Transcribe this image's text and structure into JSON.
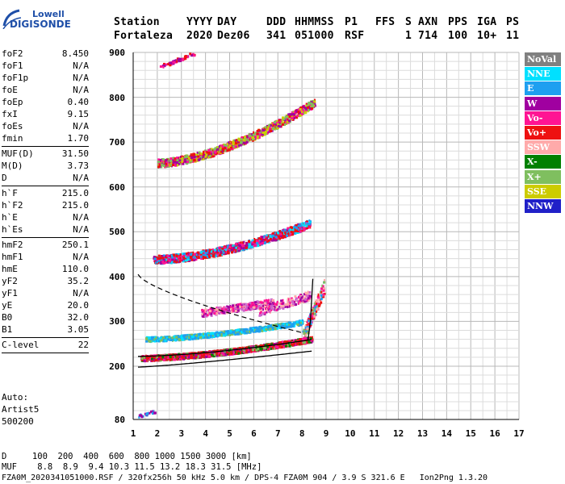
{
  "logo": {
    "line1": "Lowell",
    "line2": "DIGISONDE",
    "color": "#1f4fa8"
  },
  "header": {
    "labels": [
      "Station",
      "YYYY",
      "DAY",
      "DDD",
      "HHMMSS",
      "P1",
      "FFS",
      "S",
      "AXN",
      "PPS",
      "IGA",
      "PS"
    ],
    "values": [
      "Fortaleza",
      "2020",
      "Dez06",
      "341",
      "051000",
      "RSF",
      "",
      "1",
      "714",
      "100",
      "10+",
      "11"
    ]
  },
  "params": [
    {
      "name": "foF2",
      "value": "8.450"
    },
    {
      "name": "foF1",
      "value": "N/A"
    },
    {
      "name": "foF1p",
      "value": "N/A"
    },
    {
      "name": "foE",
      "value": "N/A"
    },
    {
      "name": "foEp",
      "value": "0.40"
    },
    {
      "name": "fxI",
      "value": "9.15"
    },
    {
      "name": "foEs",
      "value": "N/A"
    },
    {
      "name": "fmin",
      "value": "1.70"
    },
    {
      "name": "MUF(D)",
      "value": "31.50"
    },
    {
      "name": "M(D)",
      "value": "3.73"
    },
    {
      "name": "D",
      "value": "N/A"
    },
    {
      "name": "h`F",
      "value": "215.0"
    },
    {
      "name": "h`F2",
      "value": "215.0"
    },
    {
      "name": "h`E",
      "value": "N/A"
    },
    {
      "name": "h`Es",
      "value": "N/A"
    },
    {
      "name": "hmF2",
      "value": "250.1"
    },
    {
      "name": "hmF1",
      "value": "N/A"
    },
    {
      "name": "hmE",
      "value": "110.0"
    },
    {
      "name": "yF2",
      "value": "35.2"
    },
    {
      "name": "yF1",
      "value": "N/A"
    },
    {
      "name": "yE",
      "value": "20.0"
    },
    {
      "name": "B0",
      "value": "32.0"
    },
    {
      "name": "B1",
      "value": "3.05"
    },
    {
      "name": "C-level",
      "value": "22"
    }
  ],
  "auto": {
    "line1": "Auto:",
    "line2": "Artist5",
    "line3": "500200"
  },
  "axes": {
    "x_ticks": [
      "1",
      "2",
      "3",
      "4",
      "5",
      "6",
      "7",
      "8",
      "9",
      "10",
      "11",
      "12",
      "13",
      "14",
      "15",
      "16",
      "17"
    ],
    "y_ticks": [
      "80",
      "200",
      "300",
      "400",
      "500",
      "600",
      "700",
      "800",
      "900"
    ]
  },
  "legend": [
    {
      "label": "NoVal",
      "color": "#808080"
    },
    {
      "label": "NNE",
      "color": "#00e0ff"
    },
    {
      "label": "E",
      "color": "#1e9ff0"
    },
    {
      "label": "W",
      "color": "#a000a0"
    },
    {
      "label": "Vo-",
      "color": "#ff1493"
    },
    {
      "label": "Vo+",
      "color": "#ee1111"
    },
    {
      "label": "SSW",
      "color": "#ffaaaa"
    },
    {
      "label": "X-",
      "color": "#008000"
    },
    {
      "label": "X+",
      "color": "#7fbf5f"
    },
    {
      "label": "SSE",
      "color": "#cccc00"
    },
    {
      "label": "NNW",
      "color": "#2020c8"
    }
  ],
  "footer": {
    "line1": "D     100  200  400  600  800 1000 1500 3000 [km]",
    "line2": "MUF    8.8  8.9  9.4 10.3 11.5 13.2 18.3 31.5 [MHz]",
    "line3": "FZA0M_2020341051000.RSF / 320fx256h 50 kHz 5.0 km / DPS-4 FZA0M 904 / 3.9 S 321.6 E   Ion2Png 1.3.20"
  }
}
